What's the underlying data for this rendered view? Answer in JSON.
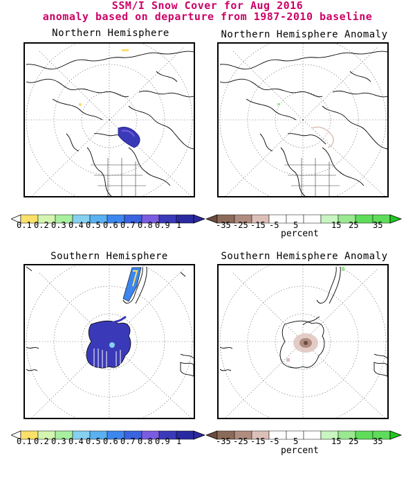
{
  "title": {
    "line1": "SSM/I Snow Cover for Aug 2016",
    "line2": "anomaly based on departure from 1987-2010 baseline",
    "color": "#cc0066"
  },
  "panels": [
    {
      "id": "nh",
      "title": "Northern Hemisphere"
    },
    {
      "id": "nha",
      "title": "Northern Hemisphere Anomaly"
    },
    {
      "id": "sh",
      "title": "Southern Hemisphere"
    },
    {
      "id": "sha",
      "title": "Southern Hemisphere Anomaly"
    }
  ],
  "cover_scale": {
    "labels": [
      "0.1",
      "0.2",
      "0.3",
      "0.4",
      "0.5",
      "0.6",
      "0.7",
      "0.8",
      "0.9",
      "1"
    ],
    "colors": [
      "#ffffff",
      "#fbe06a",
      "#d4f5b0",
      "#a8f0a0",
      "#86d0f0",
      "#5ab0f0",
      "#3c86ee",
      "#3a63e0",
      "#7a5ce0",
      "#3a3ab8",
      "#2a2aa0"
    ]
  },
  "anomaly_scale": {
    "labels": [
      "-35",
      "-25",
      "-15",
      "-5",
      "5",
      "15",
      "25",
      "35"
    ],
    "colors": [
      "#6b4b3e",
      "#8c6a5a",
      "#b08c80",
      "#dcc0b8",
      "#ffffff",
      "#ffffff",
      "#c8f5c0",
      "#9ae890",
      "#5edc5a",
      "#22c822"
    ],
    "units": "percent"
  }
}
